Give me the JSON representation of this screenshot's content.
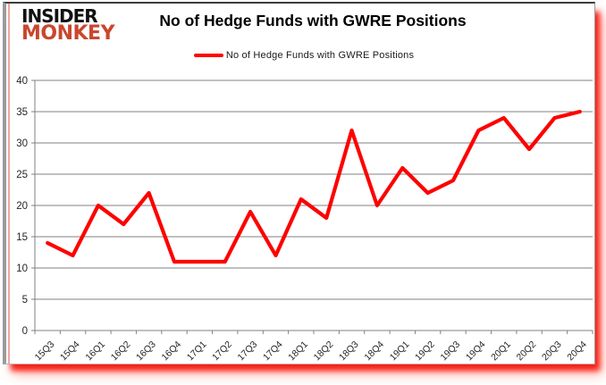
{
  "logo": {
    "line1": "INSIDER",
    "line2": "MONKEY"
  },
  "header": {
    "title": "No of Hedge Funds with GWRE Positions"
  },
  "legend": {
    "label": "No of Hedge Funds with GWRE Positions",
    "swatch_color": "#fe0000"
  },
  "colors": {
    "line": "#fe0000",
    "grid": "#808080",
    "axis": "#808080",
    "tick_label": "#262626",
    "logo_red": "#c9472e",
    "shadow_red": "#fa1208"
  },
  "chart_data": {
    "type": "line",
    "title": "No of Hedge Funds with GWRE Positions",
    "categories": [
      "15Q3",
      "15Q4",
      "16Q1",
      "16Q2",
      "16Q3",
      "16Q4",
      "17Q1",
      "17Q2",
      "17Q3",
      "17Q4",
      "18Q1",
      "18Q2",
      "18Q3",
      "18Q4",
      "19Q1",
      "19Q2",
      "19Q3",
      "19Q4",
      "20Q1",
      "20Q2",
      "20Q3",
      "20Q4"
    ],
    "series": [
      {
        "name": "No of Hedge Funds with GWRE Positions",
        "color": "#fe0000",
        "values": [
          14,
          12,
          20,
          17,
          22,
          11,
          11,
          11,
          19,
          12,
          21,
          18,
          32,
          20,
          26,
          22,
          24,
          32,
          34,
          29,
          34,
          35
        ]
      }
    ],
    "xlabel": "",
    "ylabel": "",
    "ylim": [
      0,
      40
    ],
    "ytick_step": 5,
    "grid": "horizontal",
    "legend_position": "top",
    "x_label_rotation": -45
  }
}
